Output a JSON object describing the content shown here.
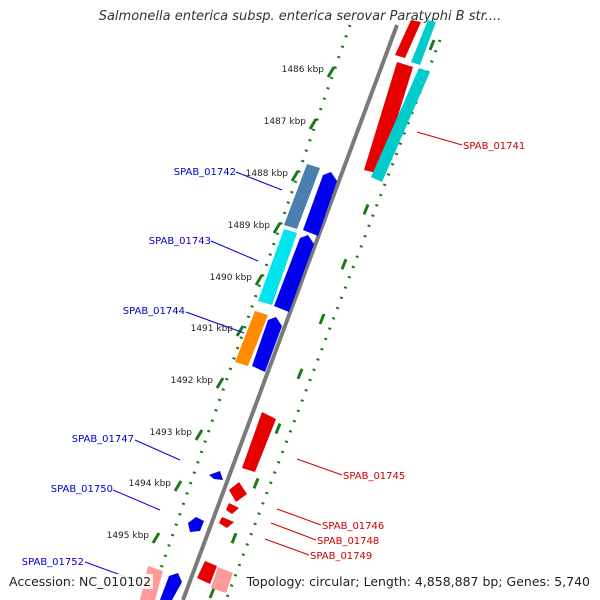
{
  "title": "Salmonella enterica subsp. enterica serovar Paratyphi B str....",
  "footer": {
    "accession": "Accession: NC_010102",
    "summary": "Topology: circular; Length: 4,858,887 bp; Genes: 5,740"
  },
  "ticks": [
    "1486 kbp",
    "1487 kbp",
    "1488 kbp",
    "1489 kbp",
    "1490 kbp",
    "1491 kbp",
    "1492 kbp",
    "1493 kbp",
    "1494 kbp",
    "1495 kbp"
  ],
  "gene_labels_left": [
    "SPAB_01742",
    "SPAB_01743",
    "SPAB_01744",
    "SPAB_01747",
    "SPAB_01750",
    "SPAB_01752"
  ],
  "gene_labels_right": [
    "SPAB_01741",
    "SPAB_01745",
    "SPAB_01746",
    "SPAB_01748",
    "SPAB_01749"
  ],
  "colors": {
    "backbone": "#8a8a8a",
    "forward_cds": "#ff0000",
    "reverse_cds": "#0000ff",
    "cyan_track": "#00d5d5",
    "steel_track": "#4a7fb0",
    "orange_track": "#ff8c00",
    "pink_track": "#ff9a9a",
    "tick_green": "#1a7a1a",
    "label_blue": "#0000cc",
    "label_red": "#cc0000"
  }
}
